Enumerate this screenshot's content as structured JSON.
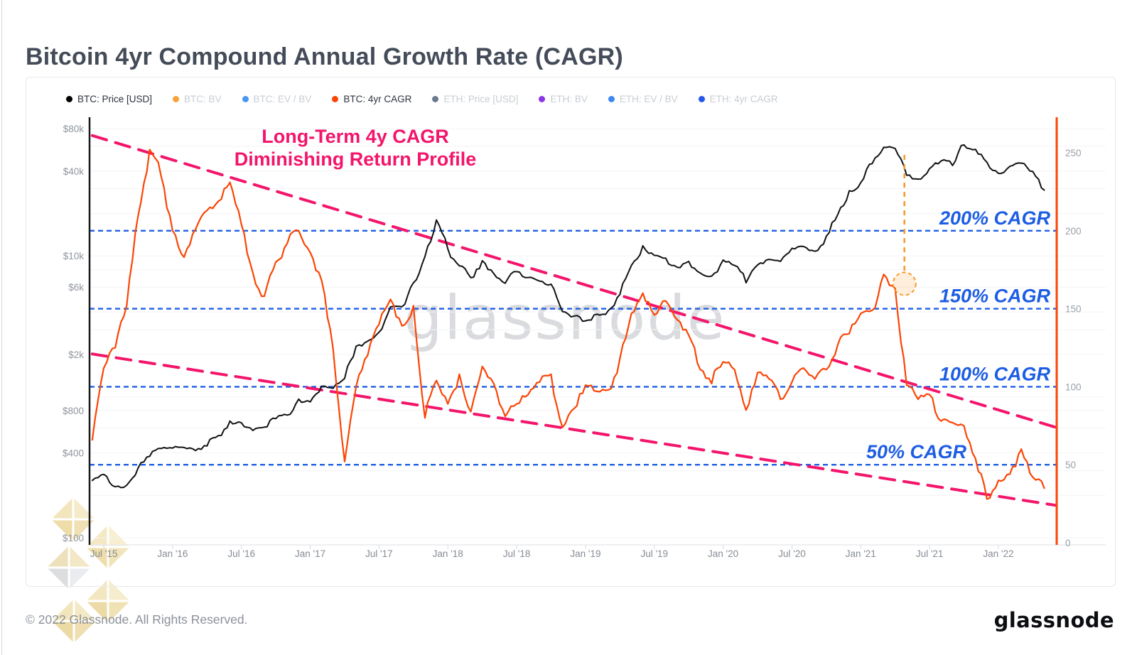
{
  "page": {
    "title": "Bitcoin 4yr Compound Annual Growth Rate (CAGR)",
    "watermark": "glassnode",
    "footer_copyright": "© 2022 Glassnode. All Rights Reserved.",
    "footer_brand": "glassnode"
  },
  "annotation": {
    "line1": "Long-Term 4y CAGR",
    "line2": "Diminishing Return Profile",
    "color": "#f3156b"
  },
  "legend": {
    "items": [
      {
        "label": "BTC: Price [USD]",
        "color": "#000000",
        "active": true
      },
      {
        "label": "BTC: BV",
        "color": "#f7a23b",
        "active": false
      },
      {
        "label": "BTC: EV / BV",
        "color": "#4b96f3",
        "active": false
      },
      {
        "label": "BTC: 4yr CAGR",
        "color": "#fb4505",
        "active": true
      },
      {
        "label": "ETH: Price [USD]",
        "color": "#6b7a8f",
        "active": false
      },
      {
        "label": "ETH: BV",
        "color": "#8c35e8",
        "active": false
      },
      {
        "label": "ETH: EV / BV",
        "color": "#3d87f5",
        "active": false
      },
      {
        "label": "ETH: 4yr CAGR",
        "color": "#2556eb",
        "active": false
      }
    ]
  },
  "chart_data": {
    "type": "line",
    "title": "Bitcoin 4yr Compound Annual Growth Rate (CAGR)",
    "grid": "faint horizontal log minor gridlines",
    "legend_position": "top",
    "categories": [
      "2015-06",
      "2015-07",
      "2015-08",
      "2015-09",
      "2015-10",
      "2015-11",
      "2015-12",
      "2016-01",
      "2016-02",
      "2016-03",
      "2016-04",
      "2016-05",
      "2016-06",
      "2016-07",
      "2016-08",
      "2016-09",
      "2016-10",
      "2016-11",
      "2016-12",
      "2017-01",
      "2017-02",
      "2017-03",
      "2017-04",
      "2017-05",
      "2017-06",
      "2017-07",
      "2017-08",
      "2017-09",
      "2017-10",
      "2017-11",
      "2017-12",
      "2018-01",
      "2018-02",
      "2018-03",
      "2018-04",
      "2018-05",
      "2018-06",
      "2018-07",
      "2018-08",
      "2018-09",
      "2018-10",
      "2018-11",
      "2018-12",
      "2019-01",
      "2019-02",
      "2019-03",
      "2019-04",
      "2019-05",
      "2019-06",
      "2019-07",
      "2019-08",
      "2019-09",
      "2019-10",
      "2019-11",
      "2019-12",
      "2020-01",
      "2020-02",
      "2020-03",
      "2020-04",
      "2020-05",
      "2020-06",
      "2020-07",
      "2020-08",
      "2020-09",
      "2020-10",
      "2020-11",
      "2020-12",
      "2021-01",
      "2021-02",
      "2021-03",
      "2021-04",
      "2021-05",
      "2021-06",
      "2021-07",
      "2021-08",
      "2021-09",
      "2021-10",
      "2021-11",
      "2021-12",
      "2022-01",
      "2022-02",
      "2022-03",
      "2022-04",
      "2022-05"
    ],
    "series": [
      {
        "name": "BTC: Price [USD]",
        "axis": "left",
        "unit": "USD",
        "color": "#101214",
        "values": [
          255,
          282,
          230,
          236,
          314,
          378,
          430,
          433,
          437,
          416,
          448,
          531,
          673,
          655,
          577,
          609,
          700,
          742,
          963,
          921,
          1190,
          1150,
          1350,
          2286,
          2480,
          2875,
          4350,
          4360,
          6450,
          9900,
          18000,
          11200,
          8500,
          7000,
          9240,
          7500,
          6400,
          7730,
          7030,
          6625,
          6300,
          4025,
          3740,
          3460,
          3855,
          4105,
          5320,
          8560,
          11800,
          10085,
          9630,
          8300,
          9150,
          7570,
          7195,
          9350,
          8550,
          6440,
          8620,
          9450,
          9140,
          11320,
          11650,
          10780,
          13800,
          19700,
          28990,
          33110,
          45160,
          58920,
          57750,
          37330,
          35045,
          41630,
          47130,
          43790,
          61320,
          57005,
          46215,
          38480,
          43190,
          45540,
          39700,
          29300
        ]
      },
      {
        "name": "BTC: 4yr CAGR",
        "axis": "right",
        "unit": "%",
        "color": "#fb4505",
        "values": [
          66,
          112,
          125,
          152,
          210,
          252,
          235,
          200,
          183,
          201,
          213,
          219,
          231,
          204,
          173,
          158,
          180,
          192,
          200,
          186,
          168,
          124,
          52,
          100,
          120,
          140,
          156,
          139,
          152,
          80,
          104,
          89,
          108,
          84,
          113,
          102,
          81,
          89,
          95,
          103,
          108,
          74,
          86,
          101,
          97,
          98,
          118,
          147,
          160,
          146,
          155,
          143,
          133,
          111,
          102,
          116,
          111,
          85,
          109,
          105,
          92,
          103,
          112,
          105,
          111,
          127,
          134,
          147,
          149,
          172,
          163,
          101,
          92,
          95,
          78,
          77,
          75,
          54,
          28,
          40,
          44,
          60,
          42,
          35
        ]
      }
    ],
    "left_axis": {
      "scale": "log",
      "min": 100,
      "max": 96000,
      "ticks": [
        {
          "value": 80000,
          "label": "$80k"
        },
        {
          "value": 40000,
          "label": "$40k"
        },
        {
          "value": 10000,
          "label": "$10k"
        },
        {
          "value": 6000,
          "label": "$6k"
        },
        {
          "value": 2000,
          "label": "$2k"
        },
        {
          "value": 800,
          "label": "$800"
        },
        {
          "value": 400,
          "label": "$400"
        },
        {
          "value": 100,
          "label": "$100"
        }
      ]
    },
    "right_axis": {
      "scale": "linear",
      "min": 0,
      "max": 273,
      "ticks": [
        250,
        200,
        150,
        100,
        50,
        0
      ]
    },
    "x_ticks": [
      "Jul '15",
      "Jan '16",
      "Jul '16",
      "Jan '17",
      "Jul '17",
      "Jan '18",
      "Jul '18",
      "Jan '19",
      "Jul '19",
      "Jan '20",
      "Jul '20",
      "Jan '21",
      "Jul '21",
      "Jan '22"
    ],
    "reference_lines": [
      {
        "value": 200,
        "label": "200% CAGR",
        "label_right_x": 1478,
        "color": "#1e5ee5"
      },
      {
        "value": 150,
        "label": "150% CAGR",
        "label_right_x": 1478,
        "color": "#1e5ee5"
      },
      {
        "value": 100,
        "label": "100% CAGR",
        "label_right_x": 1478,
        "color": "#1e5ee5"
      },
      {
        "value": 50,
        "label": "50% CAGR",
        "label_right_x": 1360,
        "color": "#1e5ee5"
      }
    ],
    "trend_lines": [
      {
        "name": "upper-diminishing-return",
        "from": {
          "date": "2015-06",
          "value": 261
        },
        "to": {
          "date": "2022-06",
          "value": 74
        },
        "color": "#f3156b"
      },
      {
        "name": "lower-diminishing-return",
        "from": {
          "date": "2015-06",
          "value": 121
        },
        "to": {
          "date": "2022-06",
          "value": 24
        },
        "color": "#f3156b"
      }
    ],
    "highlight": {
      "date": "2021-04-25",
      "cagr_value": 166,
      "from_price": 52000,
      "color": "#f79a2e"
    }
  }
}
